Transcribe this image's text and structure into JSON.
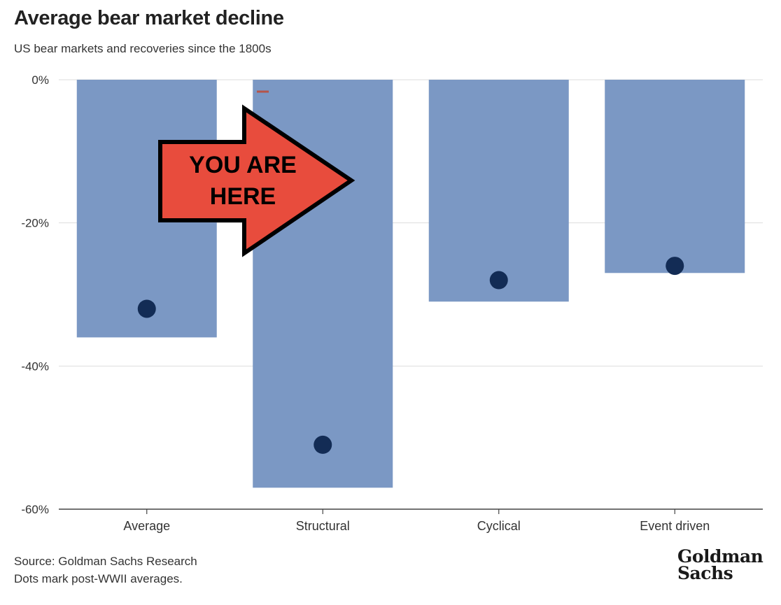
{
  "header": {
    "title": "Average bear market decline",
    "subtitle": "US bear markets and recoveries since the 1800s"
  },
  "footer": {
    "source": "Source: Goldman Sachs Research",
    "note": "Dots mark post-WWII averages."
  },
  "logo": {
    "line1": "Goldman",
    "line2": "Sachs"
  },
  "annotation": {
    "line1": "YOU ARE",
    "line2": "HERE",
    "fill": "#e84c3d",
    "stroke": "#000000"
  },
  "colors": {
    "bar": "#7b98c4",
    "dot": "#132c55",
    "grid": "#dddddd",
    "axis": "#444444"
  },
  "chart_data": {
    "type": "bar",
    "title": "Average bear market decline",
    "subtitle": "US bear markets and recoveries since the 1800s",
    "categories": [
      "Average",
      "Structural",
      "Cyclical",
      "Event driven"
    ],
    "series": [
      {
        "values": [
          -36,
          -57,
          -31,
          -27
        ]
      },
      {
        "name": "post-WWII averages",
        "marker": "dot",
        "values": [
          -32,
          -51,
          -28,
          -26
        ]
      }
    ],
    "yticks": [
      0,
      -20,
      -40,
      -60
    ],
    "ytick_labels": [
      "0%",
      "-20%",
      "-40%",
      "-60%"
    ],
    "ylim": [
      -60,
      0
    ],
    "grid": true,
    "legend": "none"
  }
}
